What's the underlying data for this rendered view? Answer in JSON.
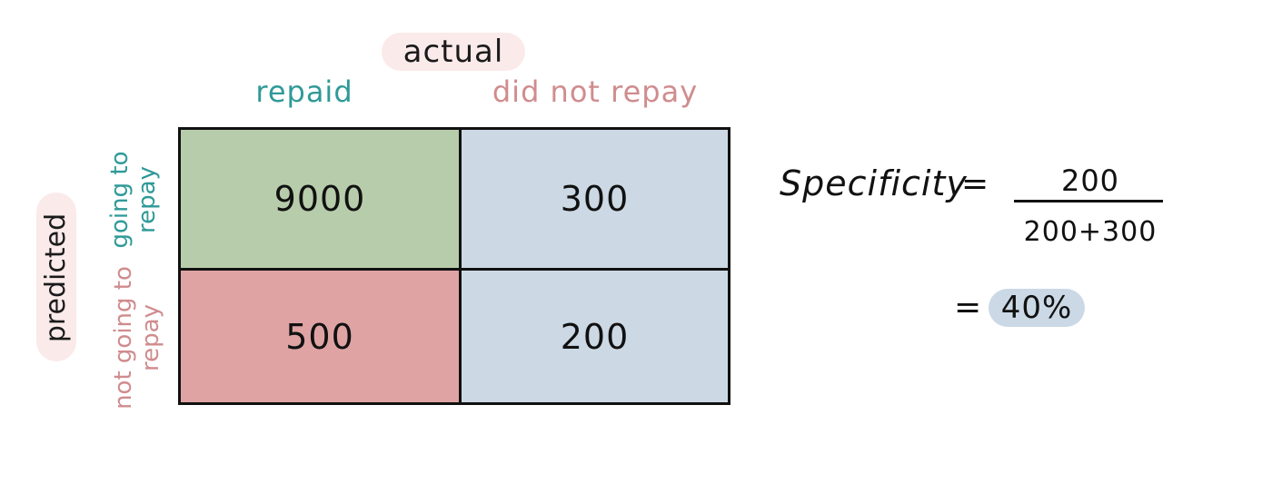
{
  "header": {
    "actual_label": "actual",
    "predicted_label": "predicted"
  },
  "columns": [
    {
      "label": "repaid",
      "color": "#2f9a98"
    },
    {
      "label": "did not repay",
      "color": "#d08c8e"
    }
  ],
  "rows": [
    {
      "label": "going to repay",
      "color": "#2f9a98"
    },
    {
      "label": "not going to repay",
      "color": "#d08c8e"
    }
  ],
  "matrix": {
    "tp": {
      "value": "9000",
      "color": "#b7ccab"
    },
    "fp": {
      "value": "300",
      "color": "#ccd9e4"
    },
    "fn": {
      "value": "500",
      "color": "#dfa3a4"
    },
    "tn": {
      "value": "200",
      "color": "#ccd9e4"
    }
  },
  "formula": {
    "label": "Specificity",
    "equals": "=",
    "numerator": "200",
    "denominator": "200+300",
    "result": "40%"
  }
}
